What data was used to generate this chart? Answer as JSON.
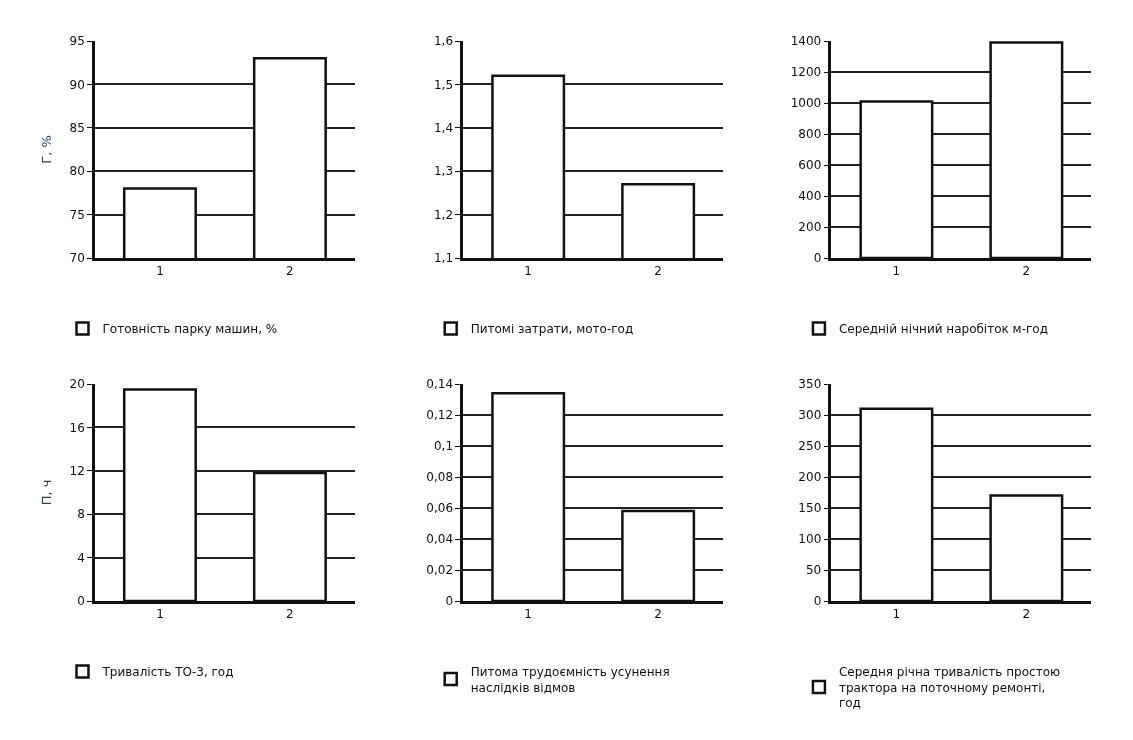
{
  "chart_data": [
    {
      "type": "bar",
      "ylabel": "Г, %",
      "categories": [
        "1",
        "2"
      ],
      "series": [
        {
          "name": "Готовність парку машин, %",
          "color": "#ffffff",
          "values": [
            78,
            93
          ]
        }
      ],
      "ylim": [
        70,
        95
      ],
      "yticks": [
        70,
        75,
        80,
        85,
        90,
        95
      ],
      "grid": "y",
      "legend": "bottom"
    },
    {
      "type": "bar",
      "categories": [
        "1",
        "2"
      ],
      "series": [
        {
          "name": "Питомі затрати, мото-год",
          "color": "#ffffff",
          "values": [
            1.52,
            1.27
          ]
        }
      ],
      "ylim": [
        1.1,
        1.6
      ],
      "yticks": [
        {
          "value": 1.1,
          "label": "1,1"
        },
        {
          "value": 1.2,
          "label": "1,2"
        },
        {
          "value": 1.3,
          "label": "1,3"
        },
        {
          "value": 1.4,
          "label": "1,4"
        },
        {
          "value": 1.5,
          "label": "1,5"
        },
        {
          "value": 1.6,
          "label": "1,6"
        }
      ],
      "grid": "y",
      "legend": "bottom"
    },
    {
      "type": "bar",
      "categories": [
        "1",
        "2"
      ],
      "series": [
        {
          "name": "Середній нічний наробіток м-год",
          "color": "#ffffff",
          "values": [
            1010,
            1390
          ]
        }
      ],
      "ylim": [
        0,
        1400
      ],
      "yticks": [
        0,
        200,
        400,
        600,
        800,
        1000,
        1200,
        1400
      ],
      "grid": "y",
      "legend": "bottom"
    },
    {
      "type": "bar",
      "ylabel": "П, ч",
      "categories": [
        "1",
        "2"
      ],
      "series": [
        {
          "name": "Тривалість ТО-3, год",
          "color": "#ffffff",
          "values": [
            19.5,
            11.8
          ]
        }
      ],
      "ylim": [
        0,
        20
      ],
      "yticks": [
        0,
        4,
        8,
        12,
        16,
        20
      ],
      "grid": "y",
      "legend": "bottom"
    },
    {
      "type": "bar",
      "categories": [
        "1",
        "2"
      ],
      "series": [
        {
          "name": "Питома трудоємність усунення наслідків відмов",
          "color": "#ffffff",
          "values": [
            0.134,
            0.058
          ]
        }
      ],
      "ylim": [
        0,
        0.14
      ],
      "yticks": [
        0,
        {
          "value": 0.02,
          "label": "0,02"
        },
        {
          "value": 0.04,
          "label": "0,04"
        },
        {
          "value": 0.06,
          "label": "0,06"
        },
        {
          "value": 0.08,
          "label": "0,08"
        },
        {
          "value": 0.1,
          "label": "0,1"
        },
        {
          "value": 0.12,
          "label": "0,12"
        },
        {
          "value": 0.14,
          "label": "0,14"
        }
      ],
      "grid": "y",
      "legend": "bottom"
    },
    {
      "type": "bar",
      "categories": [
        "1",
        "2"
      ],
      "series": [
        {
          "name": "Середня річна тривалість простою трактора на поточному ремонті, год",
          "color": "#ffffff",
          "values": [
            310,
            170
          ]
        }
      ],
      "ylim": [
        0,
        350
      ],
      "yticks": [
        0,
        50,
        100,
        150,
        200,
        250,
        300,
        350
      ],
      "grid": "y",
      "legend": "bottom"
    }
  ]
}
